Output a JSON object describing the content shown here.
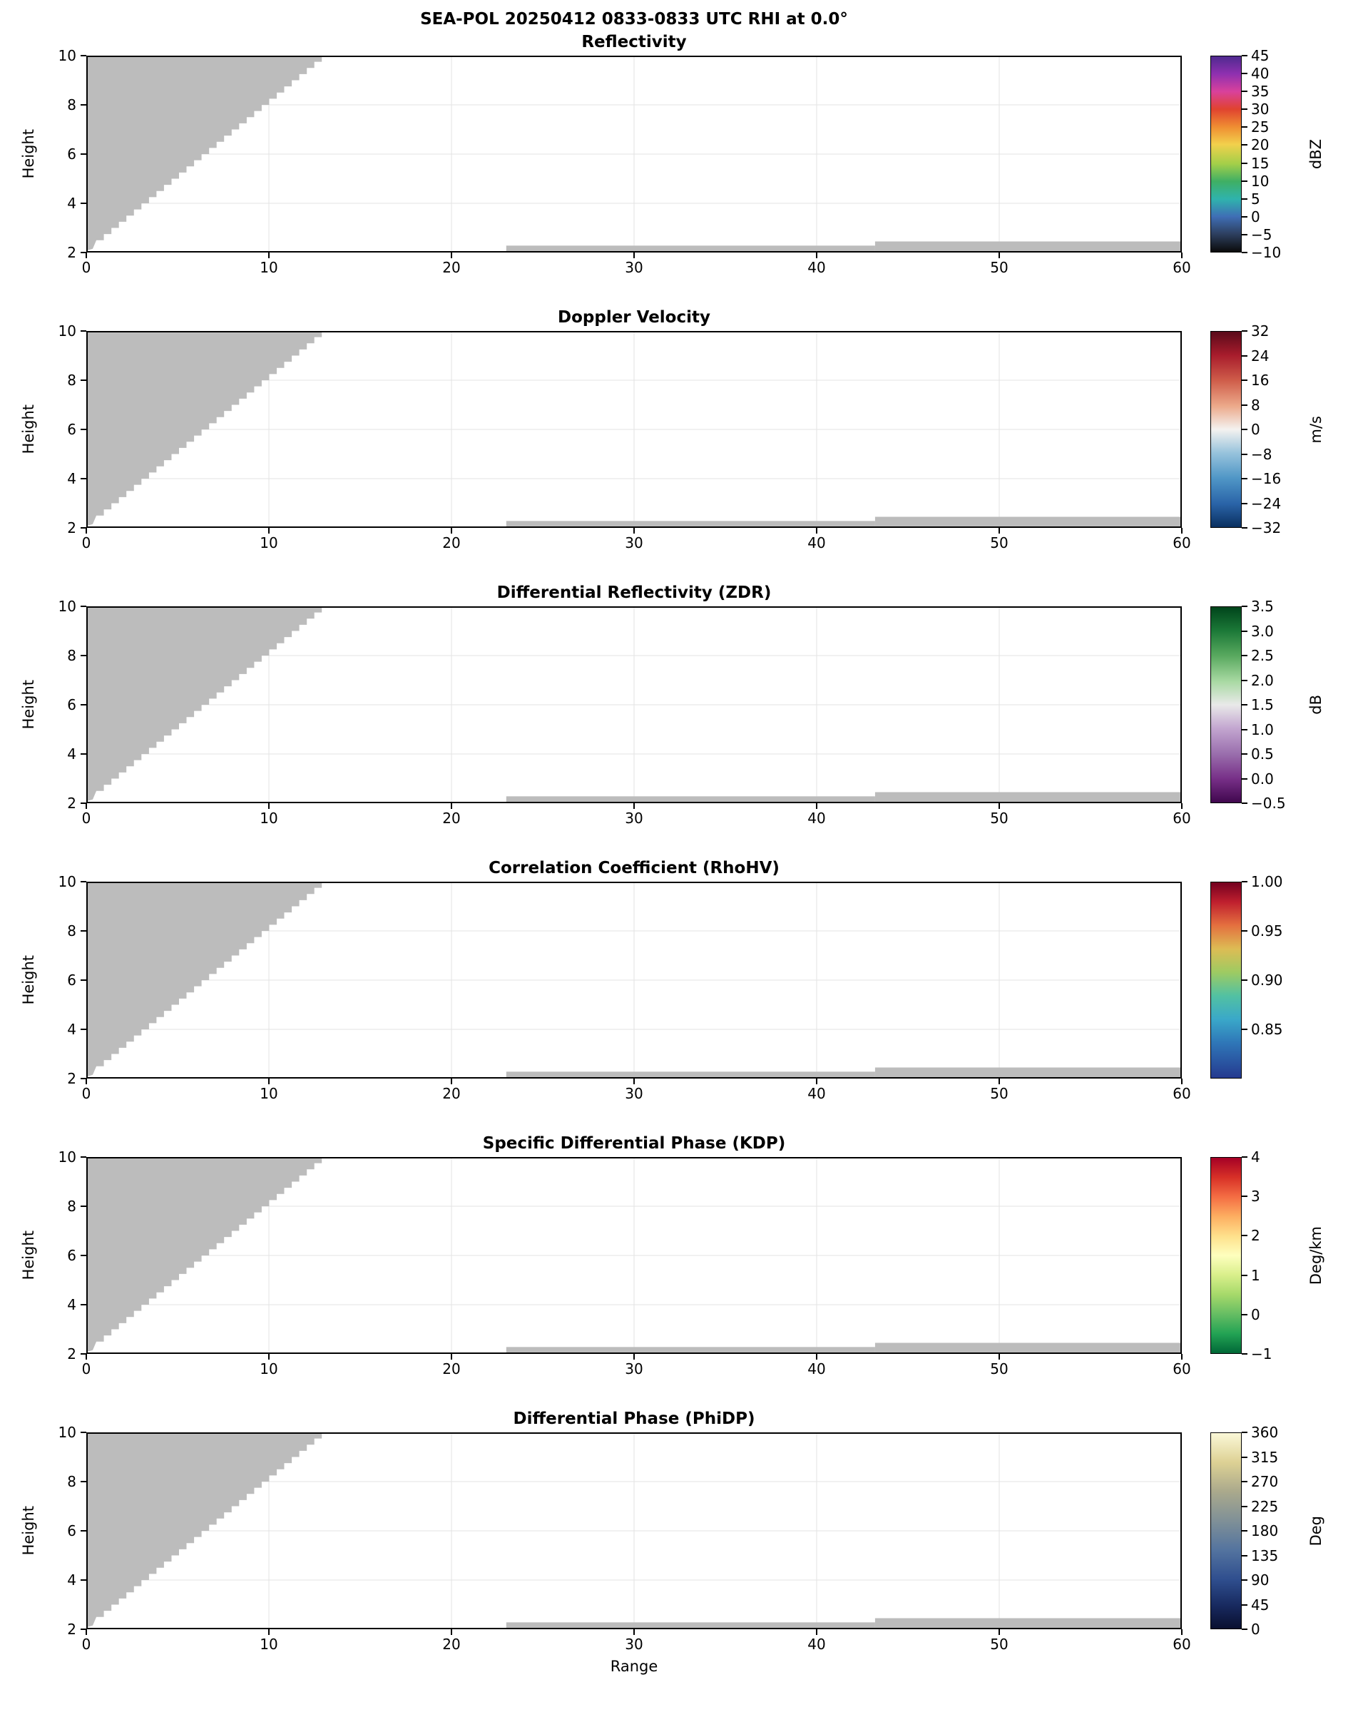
{
  "suptitle": "SEA-POL 20250412 0833-0833 UTC RHI at 0.0°",
  "axes": {
    "xlabel": "Range",
    "ylabel": "Height",
    "x_tick_labels": [
      "0",
      "10",
      "20",
      "30",
      "40",
      "50",
      "60"
    ],
    "x_tick_values": [
      0,
      10,
      20,
      30,
      40,
      50,
      60
    ],
    "y_tick_labels": [
      "10",
      "8",
      "6",
      "4",
      "2"
    ],
    "y_tick_values": [
      10,
      8,
      6,
      4,
      2
    ]
  },
  "colors": {
    "mask_gray": "#bcbcbc",
    "grid": "#e3e3e3",
    "axis": "#000000",
    "background": "#ffffff"
  },
  "chart_data": {
    "type": "heatmap",
    "title": "SEA-POL 20250412 0833-0833 UTC RHI at 0.0°",
    "xlabel": "Range",
    "ylabel": "Height",
    "x_range": [
      0,
      60
    ],
    "y_range": [
      2,
      10
    ],
    "grid": true,
    "note": "Six stacked radar RHI panels. Each panel shows only gray no-data mask regions (no colored echo): a stepped wedge in the upper-left from range 0 to about 13 above the beam line, plus thin gray strips along the bottom near height 2 from range 23-43 (thinner) and 43-60 (slightly thicker).",
    "mask": {
      "wedge": {
        "x_top": 12.9,
        "y_top": 10.0,
        "x_bottom": 0.55,
        "y_bottom": 2.5,
        "base": [
          [
            0.35,
            2.15
          ],
          [
            0.0,
            2.08
          ]
        ],
        "steps": 30
      },
      "strips": [
        {
          "x0": 23.0,
          "x1": 43.2,
          "y0": 2.02,
          "y1": 2.28
        },
        {
          "x0": 43.2,
          "x1": 60.0,
          "y0": 2.02,
          "y1": 2.45
        }
      ]
    },
    "panels": [
      {
        "title": "Reflectivity",
        "unit": "dBZ",
        "vmin": -10,
        "vmax": 45,
        "cb_tick_values": [
          45,
          40,
          35,
          30,
          25,
          20,
          15,
          10,
          5,
          0,
          -5,
          -10
        ],
        "cb_tick_labels": [
          "45",
          "40",
          "35",
          "30",
          "25",
          "20",
          "15",
          "10",
          "5",
          "0",
          "−5",
          "−10"
        ],
        "gradient": [
          [
            "0%",
            "#4f2a8f"
          ],
          [
            "9%",
            "#8f30b0"
          ],
          [
            "18%",
            "#d9419c"
          ],
          [
            "27%",
            "#e0432f"
          ],
          [
            "36%",
            "#ef8d32"
          ],
          [
            "45%",
            "#f2d04c"
          ],
          [
            "55%",
            "#a3cf49"
          ],
          [
            "64%",
            "#3faf64"
          ],
          [
            "73%",
            "#2fb3ad"
          ],
          [
            "82%",
            "#3f6eb5"
          ],
          [
            "91%",
            "#2d3f5e"
          ],
          [
            "100%",
            "#0b0b0b"
          ]
        ]
      },
      {
        "title": "Doppler Velocity",
        "unit": "m/s",
        "vmin": -32,
        "vmax": 32,
        "cb_tick_values": [
          32,
          24,
          16,
          8,
          0,
          -8,
          -16,
          -24,
          -32
        ],
        "cb_tick_labels": [
          "32",
          "24",
          "16",
          "8",
          "0",
          "−8",
          "−16",
          "−24",
          "−32"
        ],
        "gradient": [
          [
            "0%",
            "#5a0a1a"
          ],
          [
            "12%",
            "#a81c2c"
          ],
          [
            "25%",
            "#cf5d4a"
          ],
          [
            "38%",
            "#eca98a"
          ],
          [
            "50%",
            "#f4f2f0"
          ],
          [
            "62%",
            "#97c3dc"
          ],
          [
            "75%",
            "#4f96c6"
          ],
          [
            "88%",
            "#2a64a8"
          ],
          [
            "100%",
            "#0a3060"
          ]
        ]
      },
      {
        "title": "Differential Reflectivity (ZDR)",
        "unit": "dB",
        "vmin": -0.5,
        "vmax": 3.5,
        "cb_tick_values": [
          3.5,
          3.0,
          2.5,
          2.0,
          1.5,
          1.0,
          0.5,
          0.0,
          -0.5
        ],
        "cb_tick_labels": [
          "3.5",
          "3.0",
          "2.5",
          "2.0",
          "1.5",
          "1.0",
          "0.5",
          "0.0",
          "−0.5"
        ],
        "gradient": [
          [
            "0%",
            "#00441b"
          ],
          [
            "12%",
            "#1b7837"
          ],
          [
            "25%",
            "#59a95f"
          ],
          [
            "38%",
            "#a8d9a2"
          ],
          [
            "50%",
            "#e9e9e9"
          ],
          [
            "62%",
            "#c3a6d0"
          ],
          [
            "75%",
            "#9a6fad"
          ],
          [
            "88%",
            "#772f87"
          ],
          [
            "100%",
            "#40074e"
          ]
        ]
      },
      {
        "title": "Correlation Coefficient (RhoHV)",
        "unit": "",
        "vmin": 0.8,
        "vmax": 1.0,
        "cb_tick_values": [
          1.0,
          0.95,
          0.9,
          0.85
        ],
        "cb_tick_labels": [
          "1.00",
          "0.95",
          "0.90",
          "0.85"
        ],
        "gradient": [
          [
            "0%",
            "#73001f"
          ],
          [
            "10%",
            "#bf1f2e"
          ],
          [
            "22%",
            "#e4703f"
          ],
          [
            "34%",
            "#ddbc54"
          ],
          [
            "46%",
            "#9ecb62"
          ],
          [
            "58%",
            "#52c1a2"
          ],
          [
            "70%",
            "#3aa8c9"
          ],
          [
            "82%",
            "#2f77b8"
          ],
          [
            "100%",
            "#253a8f"
          ]
        ]
      },
      {
        "title": "Specific Differential Phase (KDP)",
        "unit": "Deg/km",
        "vmin": -1,
        "vmax": 4,
        "cb_tick_values": [
          4,
          3,
          2,
          1,
          0,
          -1
        ],
        "cb_tick_labels": [
          "4",
          "3",
          "2",
          "1",
          "0",
          "−1"
        ],
        "gradient": [
          [
            "0%",
            "#a50026"
          ],
          [
            "10%",
            "#d73027"
          ],
          [
            "20%",
            "#f46d43"
          ],
          [
            "30%",
            "#fdae61"
          ],
          [
            "40%",
            "#fee08b"
          ],
          [
            "50%",
            "#feffbe"
          ],
          [
            "60%",
            "#d9ef8b"
          ],
          [
            "70%",
            "#a6d96a"
          ],
          [
            "80%",
            "#66bd63"
          ],
          [
            "90%",
            "#23a354"
          ],
          [
            "100%",
            "#006837"
          ]
        ]
      },
      {
        "title": "Differential Phase (PhiDP)",
        "unit": "Deg",
        "vmin": 0,
        "vmax": 360,
        "cb_tick_values": [
          360,
          315,
          270,
          225,
          180,
          135,
          90,
          45,
          0
        ],
        "cb_tick_labels": [
          "360",
          "315",
          "270",
          "225",
          "180",
          "135",
          "90",
          "45",
          "0"
        ],
        "gradient": [
          [
            "0%",
            "#fbf8d8"
          ],
          [
            "15%",
            "#ddd194"
          ],
          [
            "30%",
            "#aaa98c"
          ],
          [
            "45%",
            "#7f9097"
          ],
          [
            "60%",
            "#53739f"
          ],
          [
            "75%",
            "#2f4e8e"
          ],
          [
            "88%",
            "#182a60"
          ],
          [
            "100%",
            "#0a1030"
          ]
        ]
      }
    ]
  }
}
